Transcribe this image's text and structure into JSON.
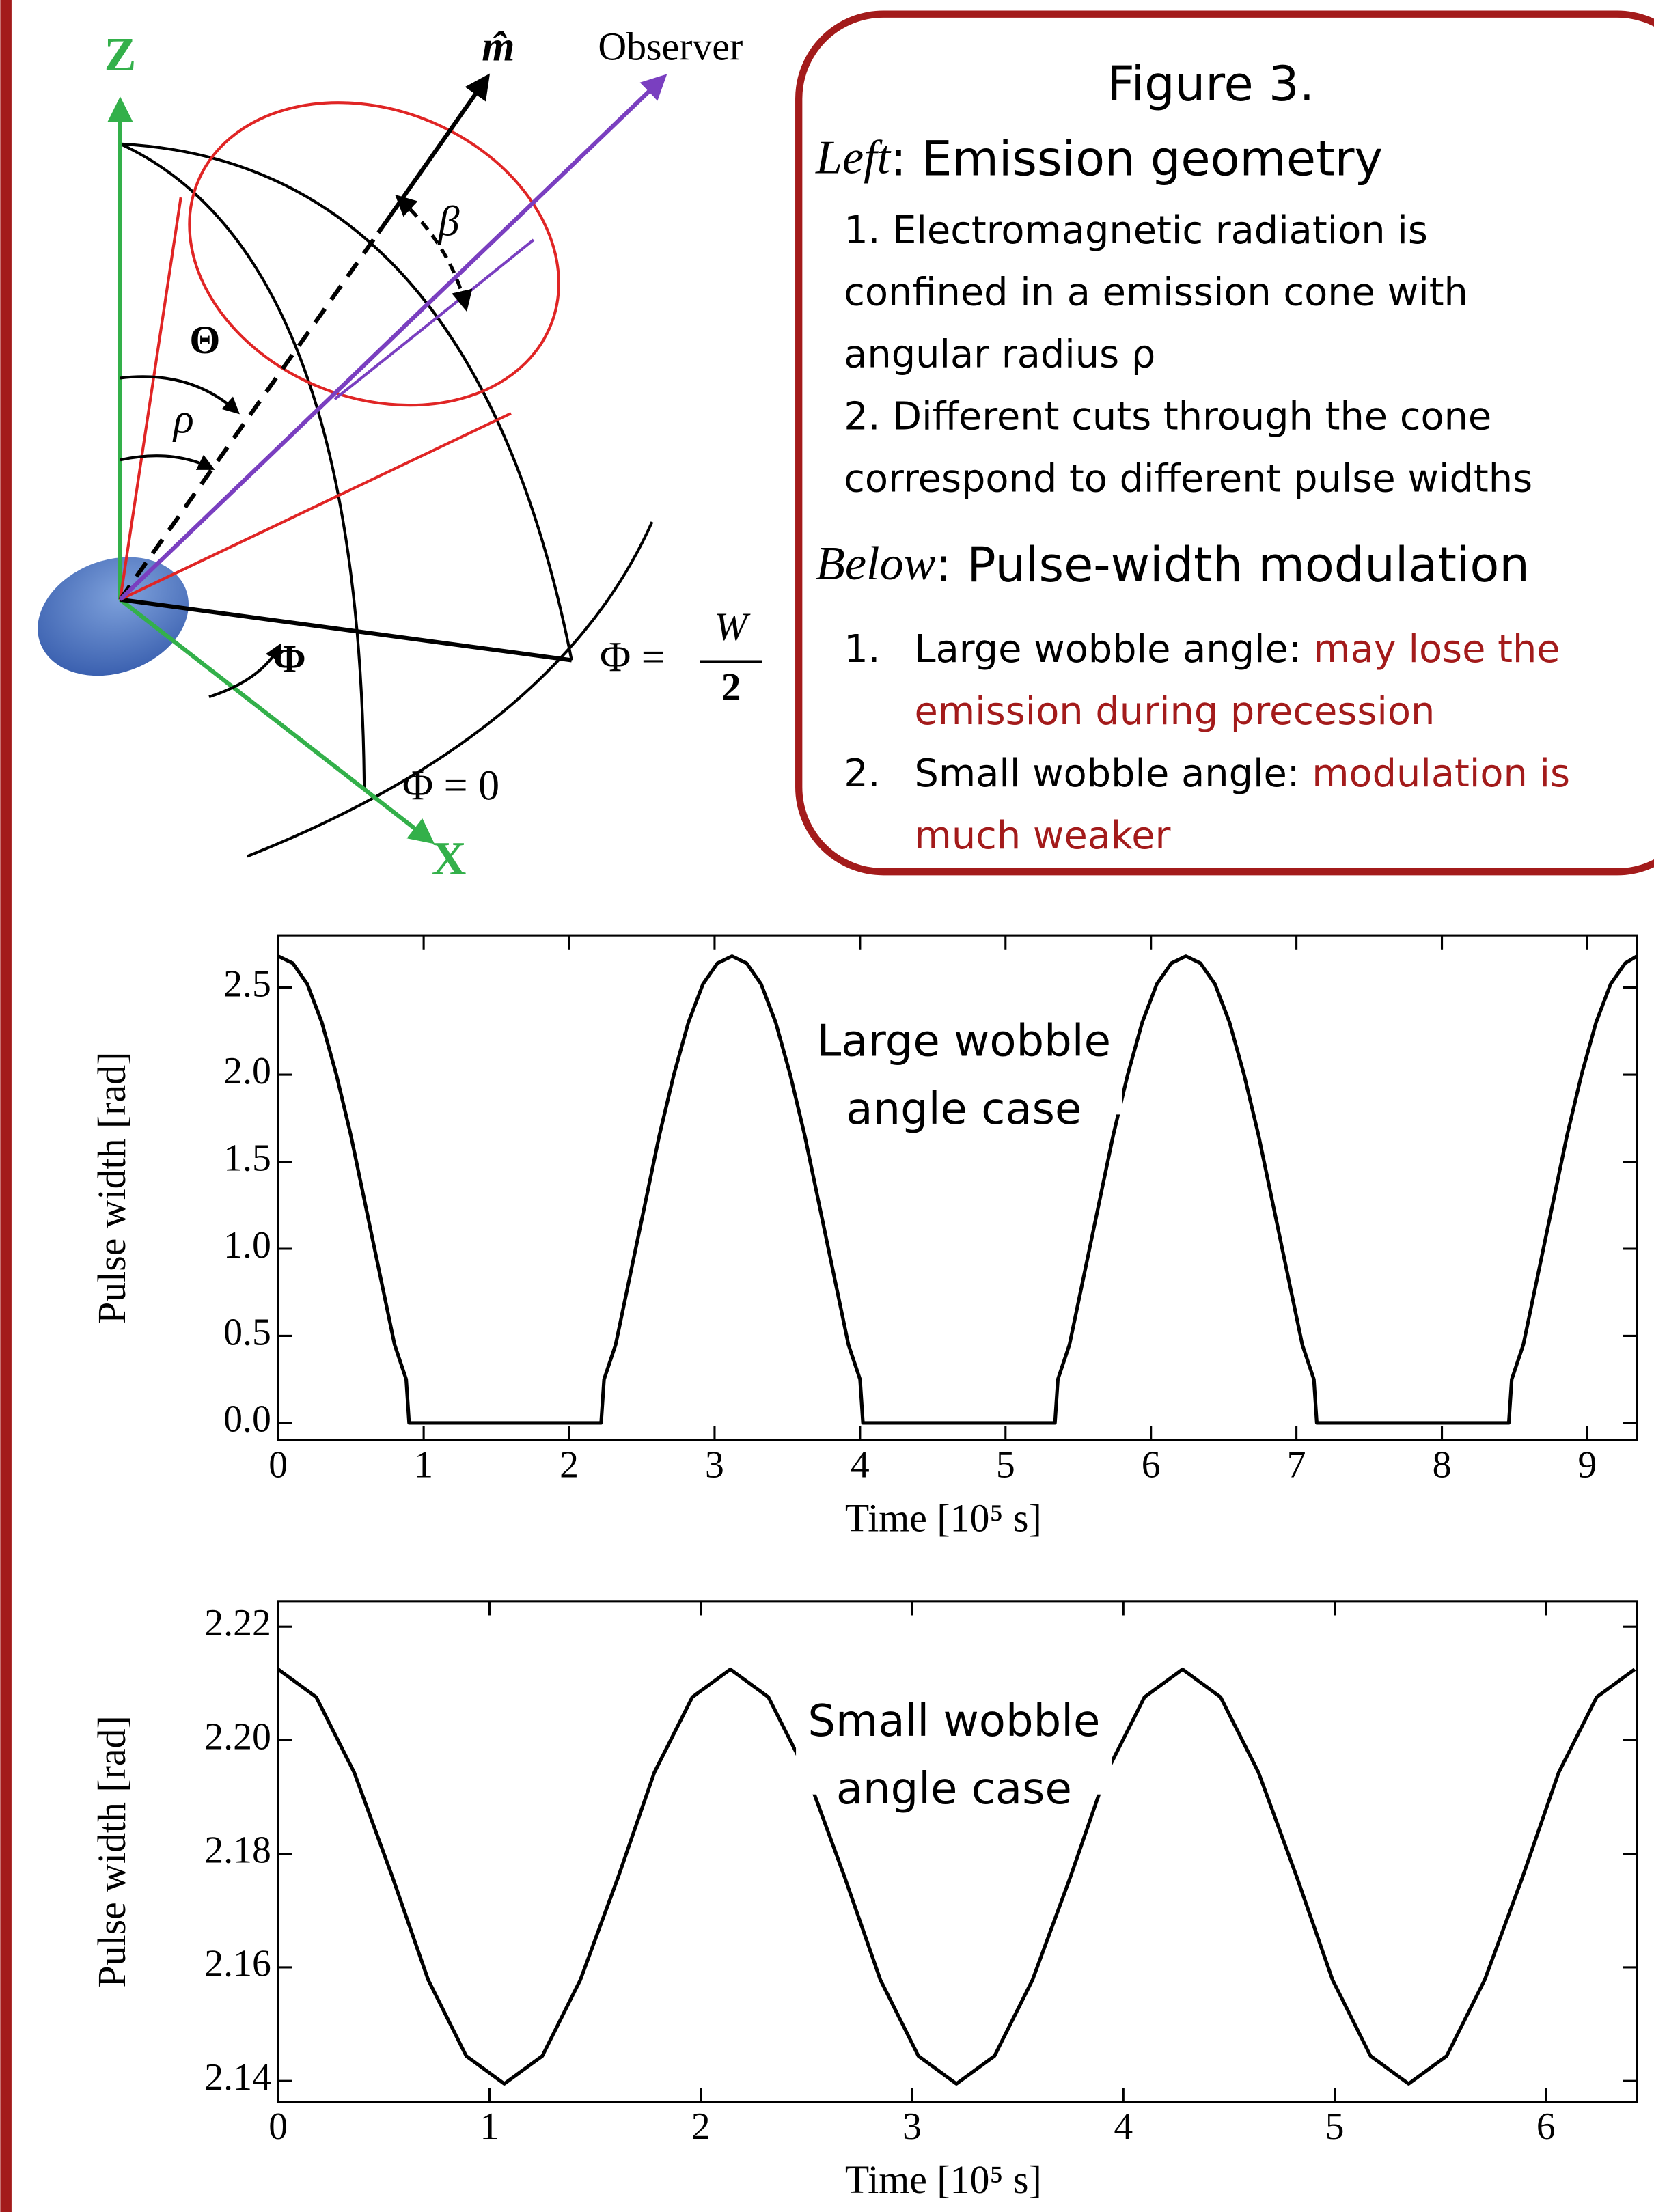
{
  "diagram": {
    "z_label": "Z",
    "x_label": "X",
    "m_label": "m̂",
    "observer_label": "Observer",
    "beta_label": "β",
    "theta_label": "Θ",
    "rho_label": "ρ",
    "phi_label": "Φ",
    "phi_half": {
      "lhs": "Φ =",
      "num": "W",
      "den": "2"
    },
    "phi_zero": "Φ = 0"
  },
  "textbox": {
    "title": "Figure 3.",
    "left_heading": {
      "label": "Left",
      "text": ": Emission geometry"
    },
    "left_items": [
      [
        "1.  Electromagnetic radiation is",
        "confined in a emission cone with",
        "angular radius ρ"
      ],
      [
        "2.  Different cuts through the cone",
        "correspond to different pulse widths"
      ]
    ],
    "below_heading": {
      "label": "Below",
      "text": ": Pulse-width modulation"
    },
    "below_items": [
      {
        "number": "1.",
        "lead": "Large wobble angle: ",
        "lines": [
          "may lose the",
          "emission during precession"
        ]
      },
      {
        "number": "2.",
        "lead": "Small wobble angle: ",
        "lines": [
          "modulation is",
          "much weaker"
        ]
      }
    ]
  },
  "chart_data": [
    {
      "type": "line",
      "xlabel": "Time [10⁵ s]",
      "ylabel": "Pulse width [rad]",
      "annotation": [
        "Large wobble",
        "angle case"
      ],
      "color": "#000000",
      "xlim": [
        0,
        9.34
      ],
      "ylim": [
        -0.1,
        2.8
      ],
      "xticks": [
        0,
        1,
        2,
        3,
        4,
        5,
        6,
        7,
        8,
        9
      ],
      "yticks": [
        {
          "value": 0,
          "label": "0.0"
        },
        0.5,
        {
          "value": 1,
          "label": "1.0"
        },
        1.5,
        {
          "value": 2,
          "label": "2.0"
        },
        2.5
      ],
      "x": [
        0,
        0.1,
        0.2,
        0.3,
        0.4,
        0.5,
        0.6,
        0.7,
        0.8,
        0.88,
        0.9,
        2.22,
        2.24,
        2.32,
        2.42,
        2.52,
        2.62,
        2.72,
        2.82,
        2.92,
        3.02,
        3.12,
        3.22,
        3.32,
        3.42,
        3.52,
        3.62,
        3.72,
        3.82,
        3.92,
        4.0,
        4.02,
        5.34,
        5.36,
        5.44,
        5.54,
        5.64,
        5.74,
        5.84,
        5.94,
        6.04,
        6.14,
        6.24,
        6.34,
        6.44,
        6.54,
        6.64,
        6.74,
        6.84,
        6.94,
        7.04,
        7.12,
        7.14,
        8.46,
        8.48,
        8.56,
        8.66,
        8.76,
        8.86,
        8.96,
        9.06,
        9.16,
        9.26,
        9.34
      ],
      "values": [
        2.68,
        2.64,
        2.52,
        2.3,
        2.0,
        1.65,
        1.25,
        0.85,
        0.45,
        0.25,
        0,
        0,
        0.25,
        0.45,
        0.85,
        1.25,
        1.65,
        2.0,
        2.3,
        2.52,
        2.64,
        2.68,
        2.64,
        2.52,
        2.3,
        2.0,
        1.65,
        1.25,
        0.85,
        0.45,
        0.25,
        0,
        0,
        0.25,
        0.45,
        0.85,
        1.25,
        1.65,
        2.0,
        2.3,
        2.52,
        2.64,
        2.68,
        2.64,
        2.52,
        2.3,
        2.0,
        1.65,
        1.25,
        0.85,
        0.45,
        0.25,
        0,
        0,
        0.25,
        0.45,
        0.85,
        1.25,
        1.65,
        2.0,
        2.3,
        2.52,
        2.64,
        2.68
      ]
    },
    {
      "type": "line",
      "xlabel": "Time [10⁵ s]",
      "ylabel": "Pulse width [rad]",
      "annotation": [
        "Small wobble",
        "angle case"
      ],
      "color": "#000000",
      "xlim": [
        0,
        6.43
      ],
      "ylim": [
        2.1363,
        2.2245
      ],
      "xticks": [
        0,
        1,
        2,
        3,
        4,
        5,
        6
      ],
      "yticks": [
        2.14,
        2.16,
        2.18,
        {
          "value": 2.2,
          "label": "2.20"
        },
        2.22
      ],
      "x": [
        0,
        0.18,
        0.36,
        0.54,
        0.71,
        0.89,
        1.07,
        1.25,
        1.43,
        1.61,
        1.78,
        1.96,
        2.14,
        2.32,
        2.5,
        2.68,
        2.85,
        3.03,
        3.21,
        3.39,
        3.57,
        3.75,
        3.92,
        4.1,
        4.28,
        4.46,
        4.64,
        4.82,
        4.99,
        5.17,
        5.35,
        5.53,
        5.71,
        5.89,
        6.06,
        6.24,
        6.42
      ],
      "values": [
        2.2125,
        2.2076,
        2.1943,
        2.176,
        2.1578,
        2.1444,
        2.1395,
        2.1444,
        2.1578,
        2.176,
        2.1943,
        2.2076,
        2.2125,
        2.2076,
        2.1943,
        2.176,
        2.1578,
        2.1444,
        2.1395,
        2.1444,
        2.1578,
        2.176,
        2.1943,
        2.2076,
        2.2125,
        2.2076,
        2.1943,
        2.176,
        2.1578,
        2.1444,
        2.1395,
        2.1444,
        2.1578,
        2.176,
        2.1943,
        2.2076,
        2.2125
      ]
    }
  ]
}
